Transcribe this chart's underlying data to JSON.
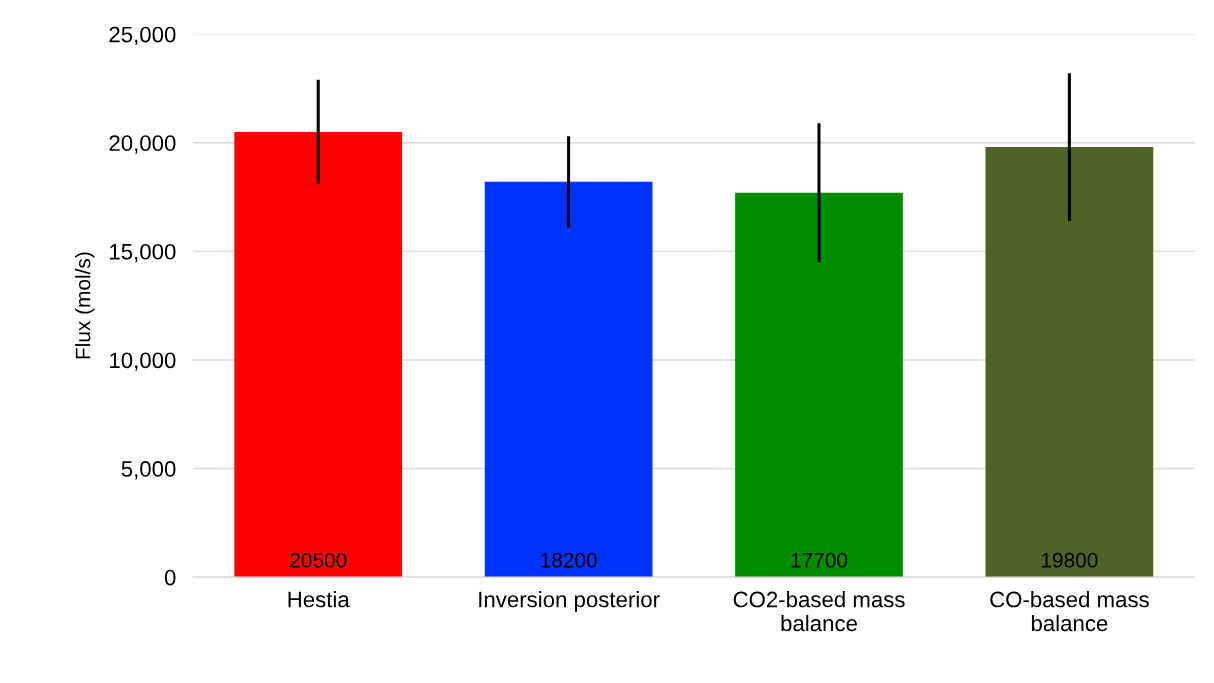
{
  "chart_data": {
    "type": "bar",
    "ylabel": "Flux (mol/s)",
    "categories": [
      "Hestia",
      "Inversion posterior",
      "CO2-based mass balance",
      "CO-based mass balance"
    ],
    "values": [
      20500,
      18200,
      17700,
      19800
    ],
    "colors": [
      "#ff0000",
      "#0033ff",
      "#008c00",
      "#4f6228"
    ],
    "errors": [
      2400,
      2100,
      3200,
      3400
    ],
    "ylim": [
      0,
      25000
    ],
    "yticks": [
      {
        "value": 0,
        "label": "0"
      },
      {
        "value": 5000,
        "label": "5,000"
      },
      {
        "value": 10000,
        "label": "10,000"
      },
      {
        "value": 15000,
        "label": "15,000"
      },
      {
        "value": 20000,
        "label": "20,000"
      },
      {
        "value": 25000,
        "label": "25,000"
      }
    ],
    "grid": "y",
    "data_labels": true
  }
}
